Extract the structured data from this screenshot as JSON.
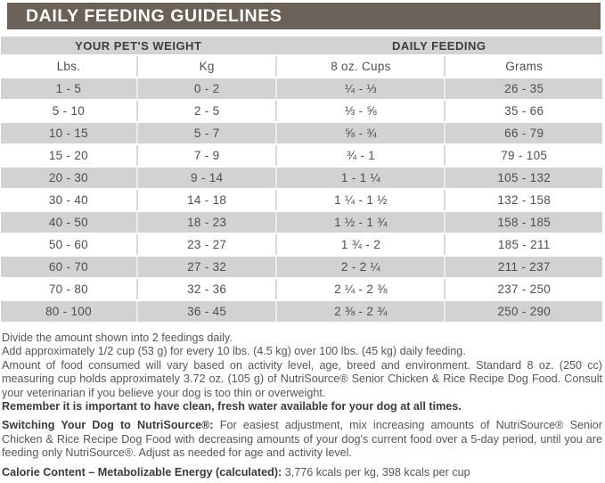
{
  "title": "DAILY FEEDING GUIDELINES",
  "colors": {
    "header_bar": "#6b6158",
    "shaded_row": "#d3d2d0",
    "divider": "#d9d8d6",
    "table_text": "#4e4e50",
    "body_text": "#565658"
  },
  "table": {
    "group_headers": [
      {
        "label": "YOUR PET'S WEIGHT"
      },
      {
        "label": "DAILY FEEDING"
      }
    ],
    "columns": [
      "Lbs.",
      "Kg",
      "8 oz. Cups",
      "Grams"
    ],
    "rows": [
      [
        "1 - 5",
        "0 - 2",
        "¼ - ⅓",
        "26 - 35"
      ],
      [
        "5 - 10",
        "2 - 5",
        "⅓ - ⅝",
        "35 - 66"
      ],
      [
        "10 - 15",
        "5 - 7",
        "⅝ - ¾",
        "66 - 79"
      ],
      [
        "15 - 20",
        "7 - 9",
        "¾ - 1",
        "79 - 105"
      ],
      [
        "20 - 30",
        "9 - 14",
        "1 - 1 ¼",
        "105 - 132"
      ],
      [
        "30 - 40",
        "14 - 18",
        "1 ¼ - 1 ½",
        "132 - 158"
      ],
      [
        "40 - 50",
        "18 - 23",
        "1 ½ - 1 ¾",
        "158 - 185"
      ],
      [
        "50 - 60",
        "23 - 27",
        "1 ¾ - 2",
        "185 - 211"
      ],
      [
        "60 - 70",
        "27 - 32",
        "2 - 2 ¼",
        "211 - 237"
      ],
      [
        "70 - 80",
        "32 - 36",
        "2 ¼ - 2 ⅜",
        "237 - 250"
      ],
      [
        "80 - 100",
        "36 - 45",
        "2 ⅜ - 2 ¾",
        "250 - 290"
      ]
    ]
  },
  "notes": {
    "divide": "Divide the amount shown into 2 feedings daily.",
    "add": "Add approximately 1/2 cup (53 g) for every 10 lbs. (4.5 kg) over 100 lbs. (45 kg) daily feeding.",
    "amount": "Amount of food consumed will vary based on activity level, age, breed and environment. Standard 8 oz. (250 cc) measuring cup holds approximately 3.72 oz. (105 g) of NutriSource® Senior Chicken & Rice Recipe Dog Food. Consult your veterinarian if you believe your dog is too thin or overweight.",
    "water": "Remember it is important to have clean, fresh water available for your dog at all times.",
    "switching_label": "Switching Your Dog to NutriSource®:",
    "switching_text": "For easiest adjustment, mix increasing amounts of NutriSource® Senior Chicken & Rice Recipe Dog Food with decreasing amounts of your dog's current food over a 5-day period, until you are feeding only NutriSource®. Adjust as needed for age and activity level.",
    "calorie_label": "Calorie Content – Metabolizable Energy (calculated):",
    "calorie_text": "3,776 kcals per kg, 398 kcals per cup"
  }
}
